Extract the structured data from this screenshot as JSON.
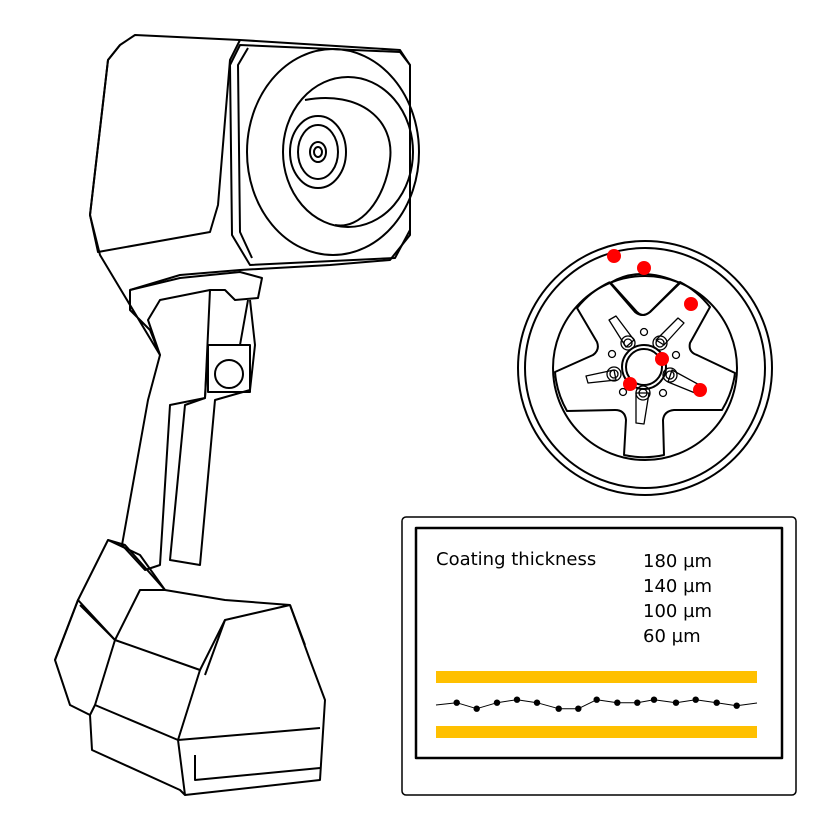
{
  "screen": {
    "title": "Coating thickness",
    "scale_values": [
      "180 µm",
      "140 µm",
      "100 µm",
      "60 µm"
    ]
  },
  "chart_data": {
    "type": "line",
    "title": "",
    "xlabel": "",
    "ylabel": "",
    "x": [
      1,
      2,
      3,
      4,
      5,
      6,
      7,
      8,
      9,
      10,
      11,
      12,
      13,
      14,
      15
    ],
    "values": [
      2,
      0,
      2,
      3,
      2,
      0,
      0,
      3,
      2,
      2,
      3,
      2,
      3,
      2,
      1
    ],
    "band_colors": "#FFC000",
    "point_color": "#000000"
  },
  "colors": {
    "measurement_point": "#FF0000",
    "tolerance_band": "#FFC000",
    "line": "#000000"
  },
  "wheel": {
    "measurement_points": 6
  }
}
